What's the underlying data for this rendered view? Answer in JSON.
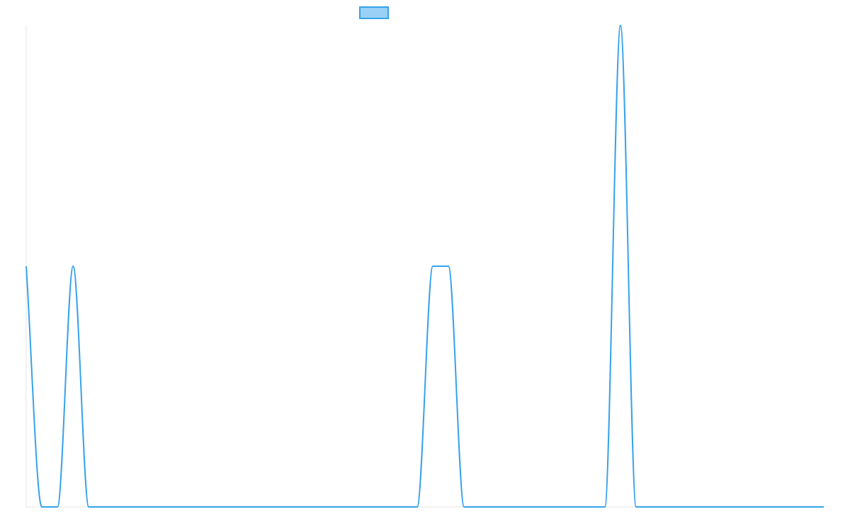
{
  "chart_data": {
    "type": "line",
    "title": "",
    "xlabel": "",
    "ylabel": "",
    "ylim": [
      0,
      1
    ],
    "xlim": [
      0,
      51
    ],
    "grid": false,
    "legend_position": "top",
    "smooth": true,
    "series": [
      {
        "color": "#36a2eb",
        "values": [
          0.5,
          0,
          0,
          0.5,
          0,
          0,
          0,
          0,
          0,
          0,
          0,
          0,
          0,
          0,
          0,
          0,
          0,
          0,
          0,
          0,
          0,
          0,
          0,
          0,
          0,
          0,
          0.5,
          0.5,
          0,
          0,
          0,
          0,
          0,
          0,
          0,
          0,
          0,
          0,
          1,
          0,
          0,
          0,
          0,
          0,
          0,
          0,
          0,
          0,
          0,
          0,
          0,
          0
        ]
      }
    ]
  }
}
